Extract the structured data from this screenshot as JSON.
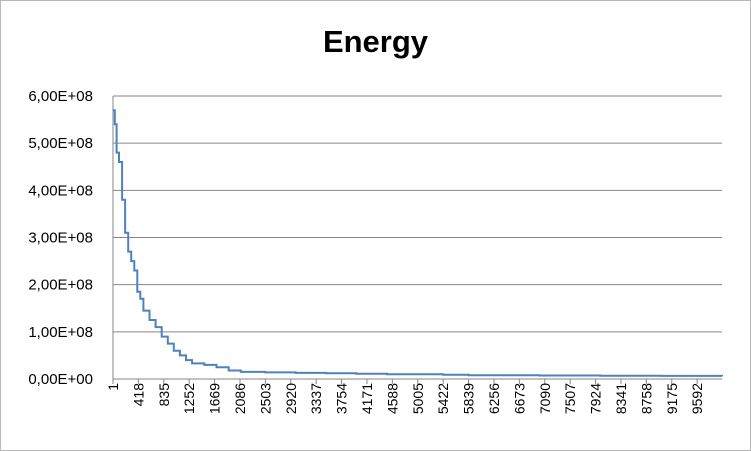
{
  "chart_data": {
    "type": "line",
    "title": "Energy",
    "xlabel": "",
    "ylabel": "",
    "x_tick_labels": [
      "1",
      "418",
      "835",
      "1252",
      "1669",
      "2086",
      "2503",
      "2920",
      "3337",
      "3754",
      "4171",
      "4588",
      "5005",
      "5422",
      "5839",
      "6256",
      "6673",
      "7090",
      "7507",
      "7924",
      "8341",
      "8758",
      "9175",
      "9592"
    ],
    "y_tick_labels": [
      "0,00E+00",
      "1,00E+08",
      "2,00E+08",
      "3,00E+08",
      "4,00E+08",
      "5,00E+08",
      "6,00E+08"
    ],
    "ylim": [
      0,
      600000000
    ],
    "xlim": [
      1,
      10000
    ],
    "grid": "horizontal",
    "legend": "none",
    "series": [
      {
        "color": "#4f81bd",
        "x": [
          1,
          30,
          60,
          100,
          150,
          200,
          250,
          300,
          350,
          400,
          450,
          500,
          600,
          700,
          800,
          900,
          1000,
          1100,
          1200,
          1300,
          1500,
          1700,
          1900,
          2100,
          2500,
          3000,
          3500,
          4000,
          4500,
          5000,
          5422,
          5839,
          7000,
          8000,
          9000,
          10000
        ],
        "y": [
          570000000,
          540000000,
          480000000,
          460000000,
          380000000,
          310000000,
          270000000,
          250000000,
          230000000,
          185000000,
          170000000,
          145000000,
          125000000,
          110000000,
          90000000,
          75000000,
          60000000,
          50000000,
          40000000,
          33000000,
          30000000,
          25000000,
          18000000,
          15000000,
          14000000,
          13000000,
          12000000,
          11000000,
          10000000,
          10000000,
          9000000,
          8000000,
          7500000,
          7000000,
          6500000,
          6000000
        ]
      }
    ]
  }
}
